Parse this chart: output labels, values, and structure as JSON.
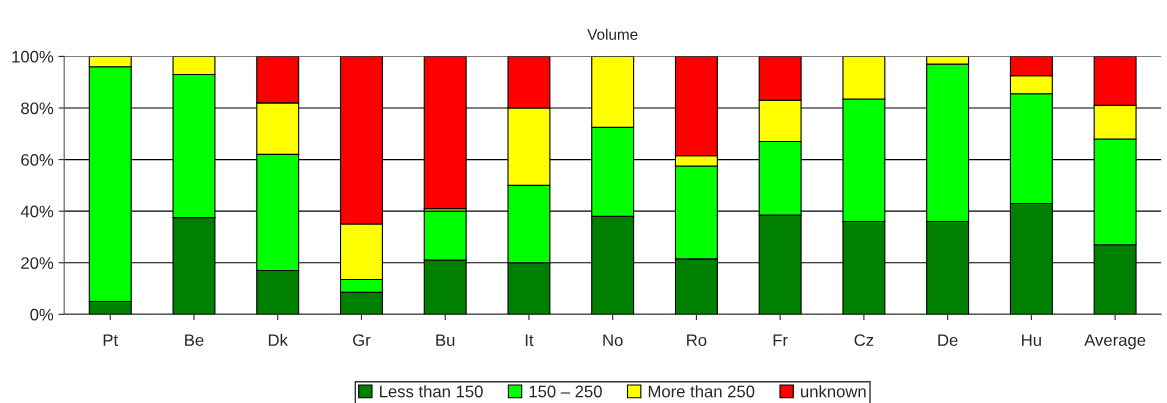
{
  "chart_data": {
    "type": "bar",
    "title": "Volume",
    "stacked": true,
    "categories": [
      "Pt",
      "Be",
      "Dk",
      "Gr",
      "Bu",
      "It",
      "No",
      "Ro",
      "Fr",
      "Cz",
      "De",
      "Hu",
      "Average"
    ],
    "series": [
      {
        "name": "Less than 150",
        "color": "#008000",
        "values": [
          5,
          37.5,
          17,
          8.5,
          21,
          20,
          38,
          21.5,
          38.5,
          36,
          36,
          43,
          27
        ]
      },
      {
        "name": "150 – 250",
        "color": "#00ff00",
        "values": [
          91,
          55.5,
          45,
          5,
          19,
          30,
          34.5,
          36,
          28.5,
          47.5,
          61,
          42.5,
          41
        ]
      },
      {
        "name": "More than 250",
        "color": "#ffff00",
        "values": [
          4,
          7,
          20,
          21.5,
          1,
          30,
          27.5,
          4,
          16,
          16.5,
          3,
          7,
          13
        ]
      },
      {
        "name": "unknown",
        "color": "#ff0000",
        "values": [
          null,
          null,
          18,
          65,
          59,
          20,
          null,
          38.5,
          17,
          null,
          null,
          7.5,
          19
        ]
      }
    ],
    "ylim": [
      0,
      100
    ],
    "yticks": [
      {
        "value": 0,
        "label": "0%"
      },
      {
        "value": 20,
        "label": "20%"
      },
      {
        "value": 40,
        "label": "40%"
      },
      {
        "value": 60,
        "label": "60%"
      },
      {
        "value": 80,
        "label": "80%"
      },
      {
        "value": 100,
        "label": "100%"
      }
    ],
    "grid": "y",
    "legend": "bottom"
  }
}
